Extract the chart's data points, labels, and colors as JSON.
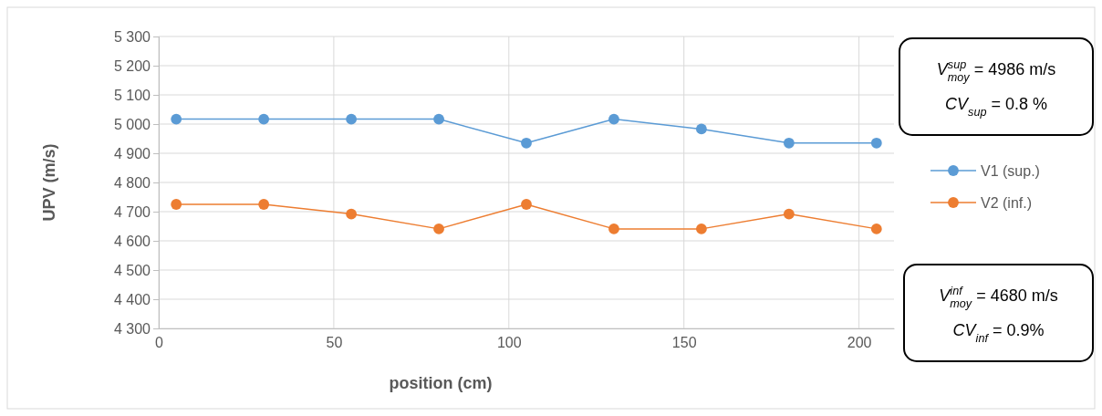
{
  "chart_data": {
    "type": "line",
    "xlabel": "position (cm)",
    "ylabel": "UPV (m/s)",
    "x": [
      5,
      30,
      55,
      80,
      105,
      130,
      155,
      180,
      205
    ],
    "series": [
      {
        "name": "V1 (sup.)",
        "color": "#5b9bd5",
        "values": [
          5017,
          5017,
          5017,
          5017,
          4935,
          5017,
          4983,
          4935,
          4935
        ]
      },
      {
        "name": "V2 (inf.)",
        "color": "#ed7d31",
        "values": [
          4725,
          4725,
          4692,
          4641,
          4725,
          4641,
          4641,
          4692,
          4641
        ]
      }
    ],
    "xlim": [
      0,
      210
    ],
    "xticks": [
      0,
      50,
      100,
      150,
      200
    ],
    "ylim": [
      4300,
      5300
    ],
    "yticks": [
      {
        "value": 4300,
        "label": "4 300"
      },
      {
        "value": 4400,
        "label": "4 400"
      },
      {
        "value": 4500,
        "label": "4 500"
      },
      {
        "value": 4600,
        "label": "4 600"
      },
      {
        "value": 4700,
        "label": "4 700"
      },
      {
        "value": 4800,
        "label": "4 800"
      },
      {
        "value": 4900,
        "label": "4 900"
      },
      {
        "value": 5000,
        "label": "5 000"
      },
      {
        "value": 5100,
        "label": "5 100"
      },
      {
        "value": 5200,
        "label": "5 200"
      },
      {
        "value": 5300,
        "label": "5 300"
      }
    ],
    "grid": true,
    "legend": "right",
    "marker": "circle",
    "line_style": "solid",
    "annotations": [
      "V$^{sup}$$_{moy}$ = 4986 m/s",
      "CV$_{sup}$ = 0.8 %",
      "V$^{inf}$$_{moy}$ = 4680 m/s",
      "CV$_{inf}$ = 0.9%"
    ]
  }
}
